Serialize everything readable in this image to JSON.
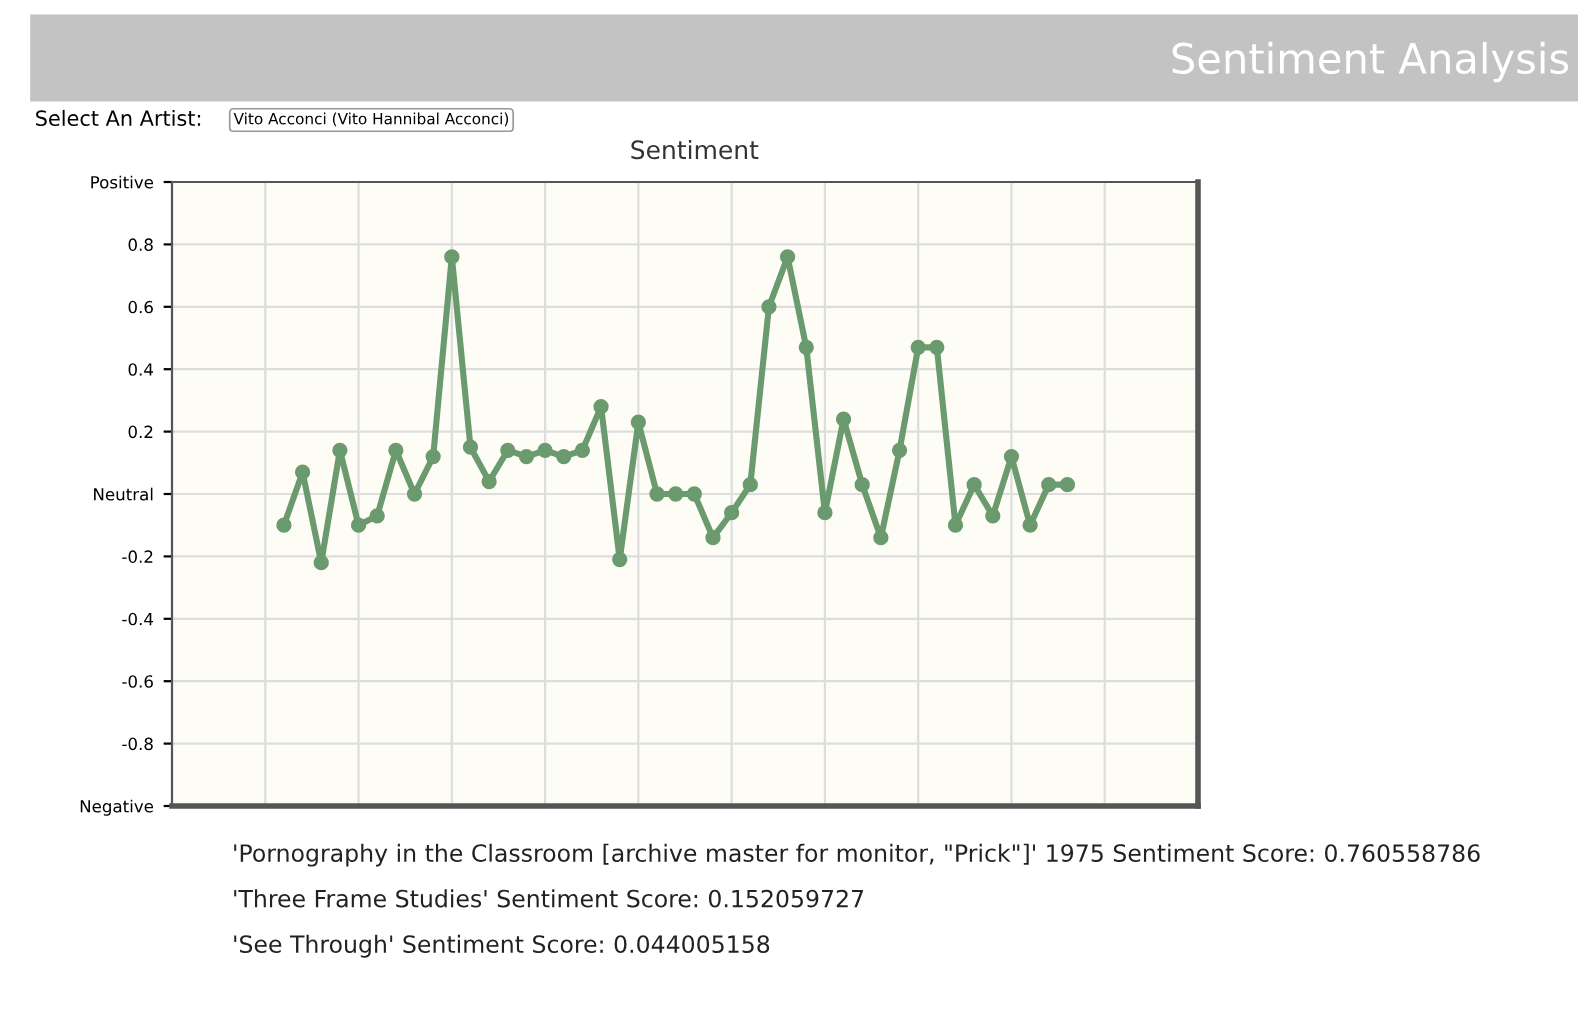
{
  "chart_data": {
    "type": "line",
    "title": "Sentiment Analysis",
    "subtitle": "Sentiment",
    "annotations": [
      "Select An Artist:",
      "Vito Acconci (Vito Hannibal Acconci)",
      "'Pornography in the Classroom [archive master for monitor, \"Prick\"]' 1975 Sentiment Score: 0.760558786",
      "'Three Frame Studies' Sentiment Score: 0.152059727",
      "'See Through' Sentiment Score: 0.044005158"
    ],
    "categories": [
      null,
      null,
      null,
      null,
      null,
      null,
      null,
      null,
      null,
      null,
      null,
      null,
      null,
      null,
      null,
      null,
      null,
      null,
      null,
      null,
      null,
      null,
      null,
      null,
      null,
      null,
      null,
      null,
      null,
      null,
      null,
      null,
      null,
      null,
      null,
      null,
      null,
      null,
      null,
      null,
      null,
      null,
      null
    ],
    "series": [
      {
        "color": "#6a9a6e",
        "values": [
          -0.1,
          0.07,
          -0.22,
          0.14,
          -0.1,
          -0.07,
          0.14,
          0.0,
          0.12,
          0.76,
          0.15,
          0.04,
          0.14,
          0.12,
          0.14,
          0.12,
          0.14,
          0.28,
          -0.21,
          0.23,
          0.0,
          0.0,
          0.0,
          -0.14,
          -0.06,
          0.03,
          0.6,
          0.76,
          0.47,
          -0.06,
          0.24,
          0.03,
          -0.14,
          0.14,
          0.47,
          0.47,
          -0.1,
          0.03,
          -0.07,
          0.12,
          -0.1,
          0.03,
          0.03
        ]
      }
    ],
    "ylim": [
      -1,
      1
    ],
    "yticks": [
      {
        "value": -1,
        "label": "Negative"
      },
      -0.8,
      -0.6,
      -0.4,
      -0.2,
      {
        "value": 0,
        "label": "Neutral"
      },
      0.2,
      0.4,
      0.6,
      0.8,
      {
        "value": 1,
        "label": "Positive"
      }
    ],
    "grid": true,
    "tick_labels": "y",
    "marker": "circle",
    "line_style": "solid"
  }
}
